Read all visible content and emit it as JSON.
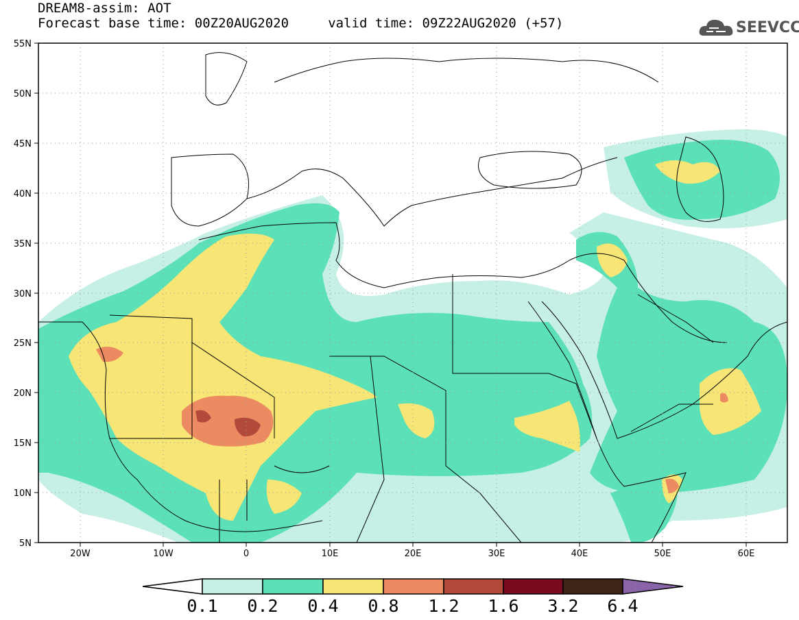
{
  "header": {
    "title_line1": "DREAM8-assim: AOT",
    "title_line2": "Forecast base time: 00Z20AUG2020     valid time: 09Z22AUG2020 (+57)",
    "logo_text": "SEEVCCC"
  },
  "map": {
    "lon_range": [
      -25,
      65
    ],
    "lat_range": [
      5,
      55
    ],
    "lat_ticks": [
      "5N",
      "10N",
      "15N",
      "20N",
      "25N",
      "30N",
      "35N",
      "40N",
      "45N",
      "50N",
      "55N"
    ],
    "lon_ticks": [
      "20W",
      "10W",
      "0",
      "10E",
      "20E",
      "30E",
      "40E",
      "50E",
      "60E"
    ],
    "grid": "dotted",
    "borders": "black country outlines"
  },
  "colorbar": {
    "levels": [
      "0.1",
      "0.2",
      "0.4",
      "0.8",
      "1.2",
      "1.6",
      "3.2",
      "6.4"
    ],
    "colors": [
      "#ffffff",
      "#c6efe6",
      "#5ce0b8",
      "#f7e675",
      "#ec8a62",
      "#b14a3a",
      "#7a0b1e",
      "#3e2417",
      "#8a64a8"
    ]
  }
}
